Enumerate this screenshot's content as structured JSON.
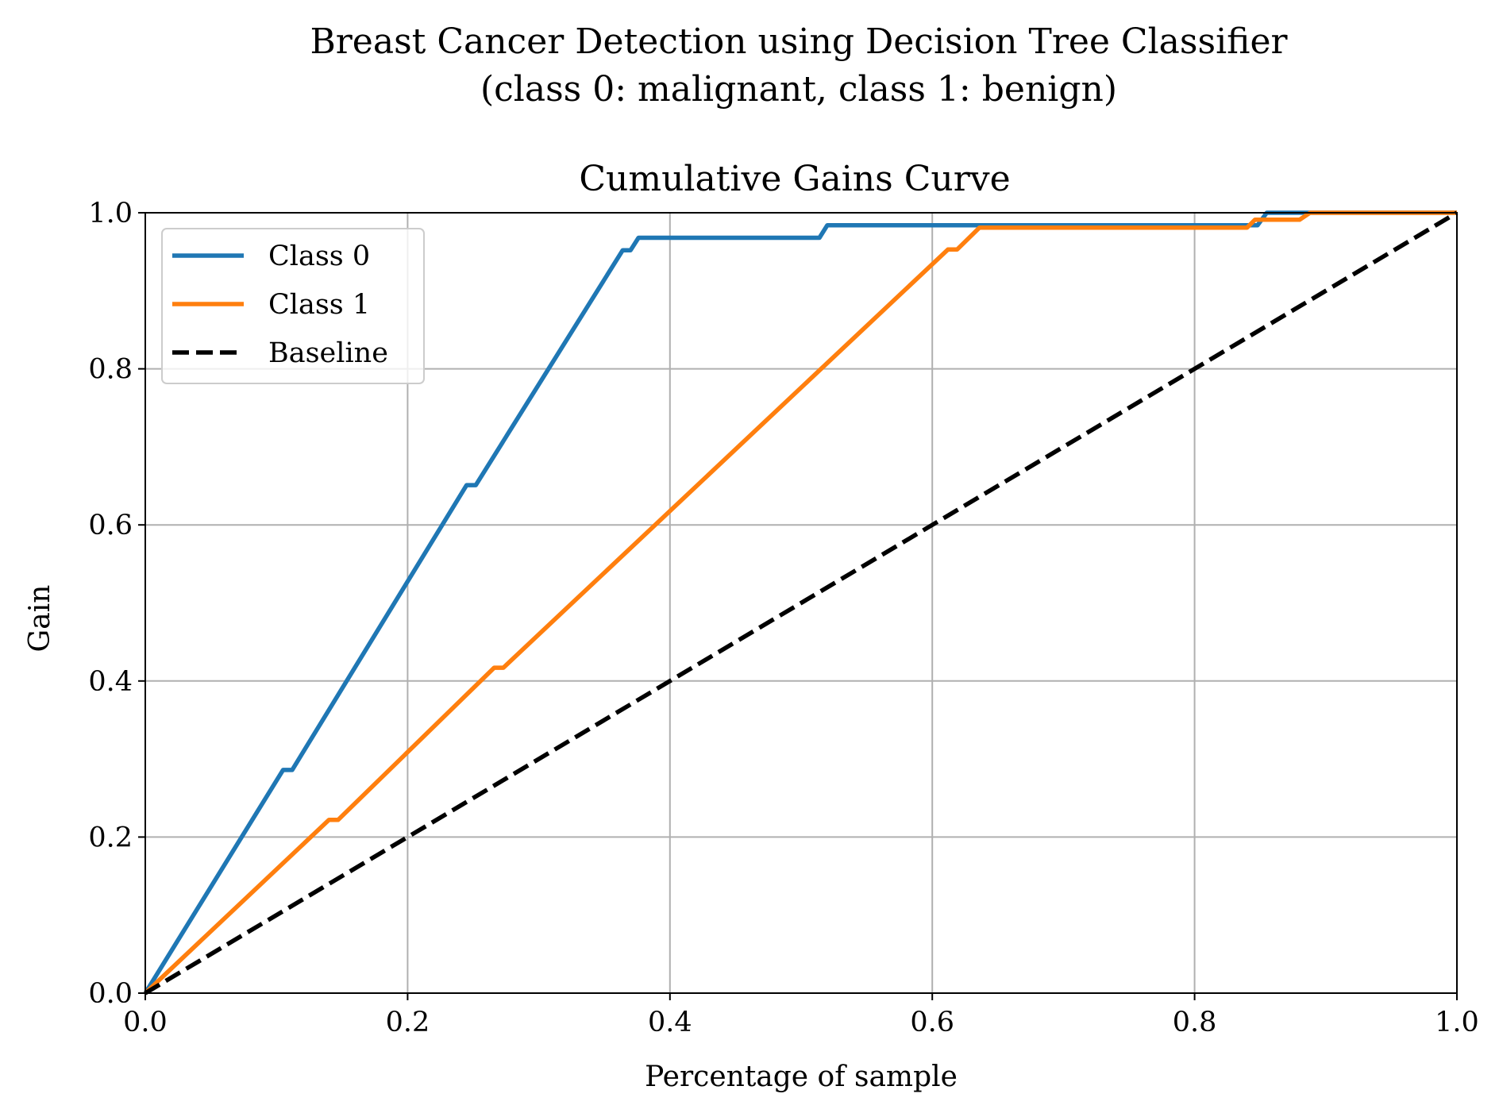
{
  "chart_data": {
    "type": "line",
    "suptitle_lines": [
      "Breast Cancer Detection using Decision Tree Classifier",
      "(class 0: malignant, class 1: benign)"
    ],
    "title": "Cumulative Gains Curve",
    "xlabel": "Percentage of sample",
    "ylabel": "Gain",
    "xlim": [
      0.0,
      1.0
    ],
    "ylim": [
      0.0,
      1.0
    ],
    "xticks": [
      "0.0",
      "0.2",
      "0.4",
      "0.6",
      "0.8",
      "1.0"
    ],
    "yticks": [
      "0.0",
      "0.2",
      "0.4",
      "0.6",
      "0.8",
      "1.0"
    ],
    "grid": true,
    "legend_position": "upper-left",
    "series": [
      {
        "name": "Class 0",
        "color": "#1f77b4",
        "style": "solid",
        "points": [
          [
            0.0,
            0.0
          ],
          [
            0.105,
            0.286
          ],
          [
            0.112,
            0.286
          ],
          [
            0.245,
            0.651
          ],
          [
            0.252,
            0.651
          ],
          [
            0.364,
            0.952
          ],
          [
            0.37,
            0.952
          ],
          [
            0.376,
            0.968
          ],
          [
            0.514,
            0.968
          ],
          [
            0.52,
            0.984
          ],
          [
            0.848,
            0.984
          ],
          [
            0.855,
            1.0
          ],
          [
            1.0,
            1.0
          ]
        ]
      },
      {
        "name": "Class 1",
        "color": "#ff7f0e",
        "style": "solid",
        "points": [
          [
            0.0,
            0.0
          ],
          [
            0.14,
            0.222
          ],
          [
            0.147,
            0.222
          ],
          [
            0.266,
            0.417
          ],
          [
            0.273,
            0.417
          ],
          [
            0.612,
            0.953
          ],
          [
            0.619,
            0.953
          ],
          [
            0.636,
            0.981
          ],
          [
            0.84,
            0.981
          ],
          [
            0.846,
            0.991
          ],
          [
            0.88,
            0.991
          ],
          [
            0.888,
            1.0
          ],
          [
            1.0,
            1.0
          ]
        ]
      },
      {
        "name": "Baseline",
        "color": "#000000",
        "style": "dashed",
        "points": [
          [
            0.0,
            0.0
          ],
          [
            1.0,
            1.0
          ]
        ]
      }
    ]
  }
}
